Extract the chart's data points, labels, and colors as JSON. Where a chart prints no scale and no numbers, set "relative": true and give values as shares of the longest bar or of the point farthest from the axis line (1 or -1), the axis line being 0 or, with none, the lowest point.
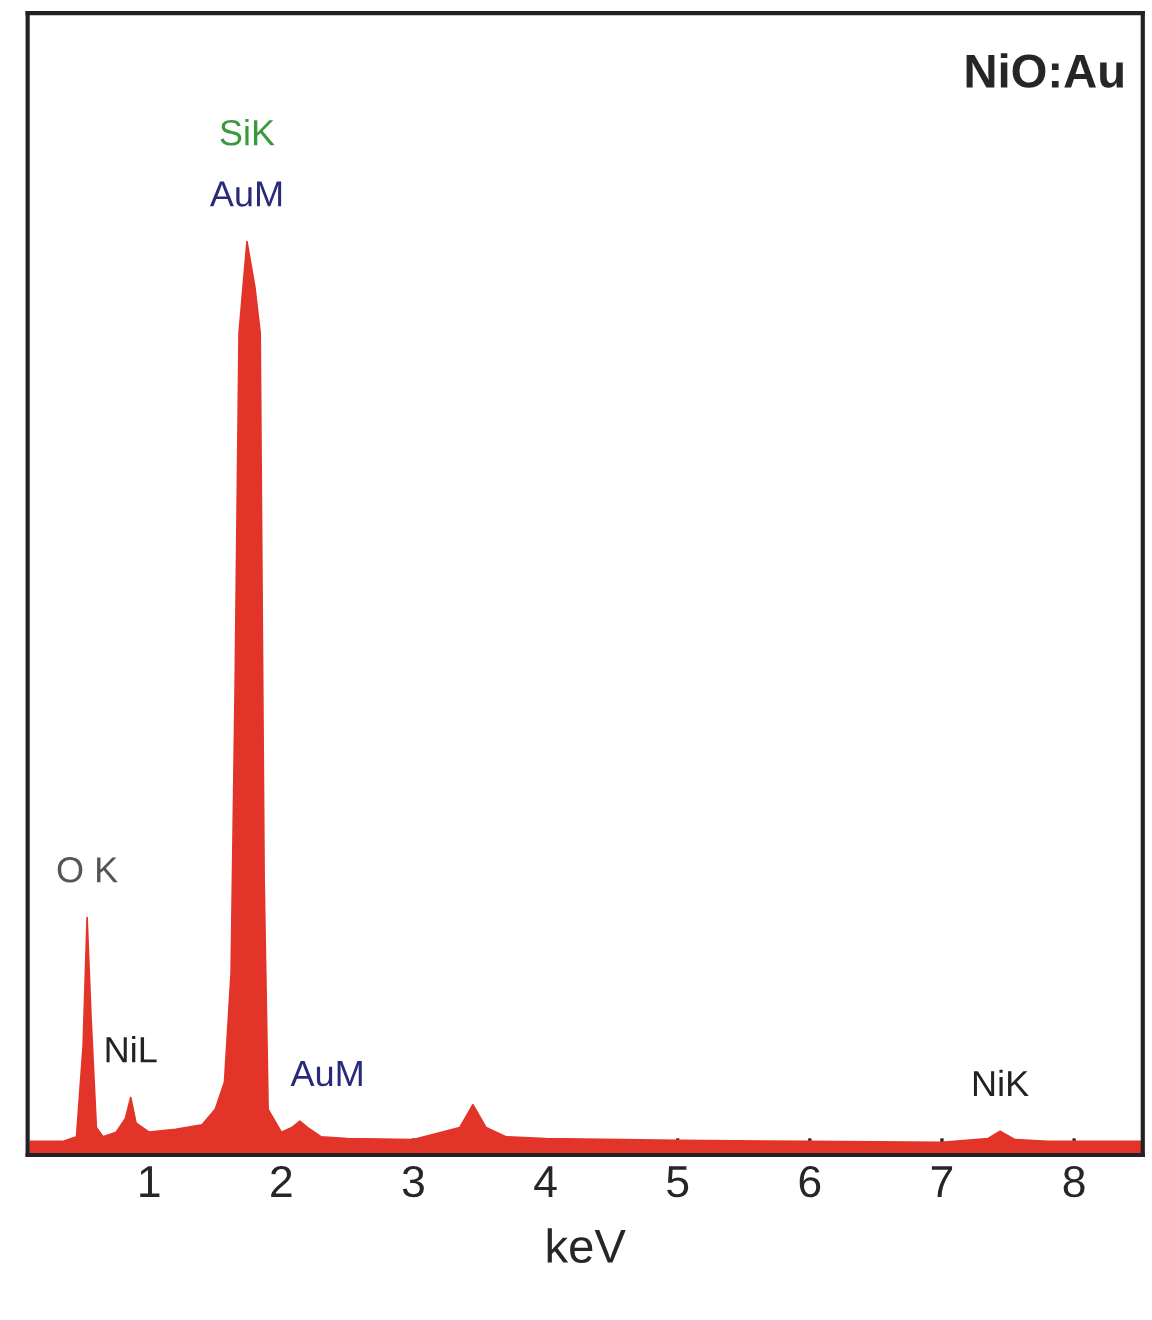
{
  "chart_data": {
    "type": "area",
    "relative": true,
    "title": "NiO:Au",
    "xlabel": "keV",
    "xlim": [
      0.08,
      8.52
    ],
    "xticks": [
      1,
      2,
      3,
      4,
      5,
      6,
      7,
      8
    ],
    "grid": false,
    "legend": false,
    "tick_labels": "x",
    "x": [
      0.1,
      0.35,
      0.45,
      0.5,
      0.53,
      0.56,
      0.6,
      0.65,
      0.75,
      0.82,
      0.86,
      0.9,
      0.95,
      1.0,
      1.2,
      1.4,
      1.5,
      1.57,
      1.62,
      1.65,
      1.68,
      1.74,
      1.8,
      1.84,
      1.87,
      1.9,
      2.0,
      2.08,
      2.14,
      2.2,
      2.3,
      2.5,
      3.0,
      3.35,
      3.45,
      3.55,
      3.7,
      4.0,
      5.0,
      6.0,
      7.0,
      7.35,
      7.44,
      7.55,
      7.8,
      8.52
    ],
    "series": [
      {
        "color": "#e3342a",
        "values": [
          0.015,
          0.015,
          0.02,
          0.12,
          0.26,
          0.15,
          0.03,
          0.02,
          0.025,
          0.04,
          0.063,
          0.035,
          0.03,
          0.025,
          0.028,
          0.033,
          0.05,
          0.08,
          0.2,
          0.51,
          0.9,
          1.0,
          0.95,
          0.9,
          0.3,
          0.05,
          0.025,
          0.03,
          0.037,
          0.03,
          0.02,
          0.018,
          0.017,
          0.03,
          0.055,
          0.03,
          0.02,
          0.018,
          0.016,
          0.015,
          0.014,
          0.018,
          0.026,
          0.017,
          0.015,
          0.015
        ]
      }
    ],
    "annotations": [
      {
        "text": "O K",
        "x": 0.53,
        "y": 0.26
      },
      {
        "text": "NiL",
        "x": 0.86,
        "y": 0.063
      },
      {
        "text": "SiK",
        "x": 1.74,
        "y": 1.0
      },
      {
        "text": "AuM",
        "x": 1.74,
        "y": 1.0
      },
      {
        "text": "AuM",
        "x": 2.14,
        "y": 0.037
      },
      {
        "text": "NiK",
        "x": 7.44,
        "y": 0.026
      }
    ]
  }
}
